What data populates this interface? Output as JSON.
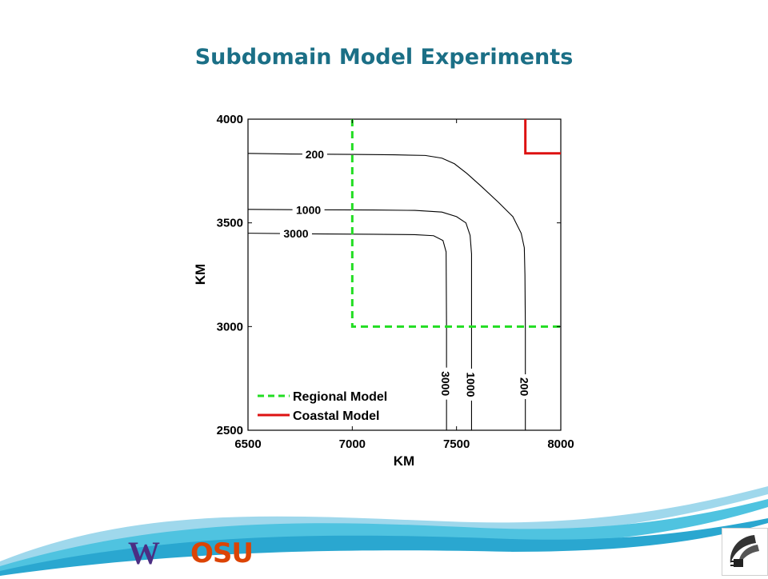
{
  "slide": {
    "title": "Subdomain Model Experiments",
    "logos": {
      "uw": "W",
      "osu": "OSU",
      "badge_icon": "wave-plug-icon"
    }
  },
  "colors": {
    "title": "#1b6f86",
    "regional": "#22dd22",
    "coastal": "#dd1111",
    "uw": "#4b2e83",
    "osu": "#dc4405"
  },
  "chart_data": {
    "type": "line",
    "xlabel": "KM",
    "ylabel": "KM",
    "xlim": [
      6500,
      8000
    ],
    "ylim": [
      2500,
      4000
    ],
    "xticks": [
      "6500",
      "7000",
      "7500",
      "8000"
    ],
    "yticks": [
      "2500",
      "3000",
      "3500",
      "4000"
    ],
    "grid": false,
    "legend_position": "bottom-left",
    "series": [
      {
        "name": "Regional Model",
        "style": "dashed",
        "color": "#22dd22",
        "points": [
          [
            7000,
            4000
          ],
          [
            7000,
            3000
          ],
          [
            8000,
            3000
          ]
        ]
      },
      {
        "name": "Coastal Model",
        "style": "solid",
        "color": "#dd1111",
        "points": [
          [
            7830,
            4000
          ],
          [
            7830,
            3835
          ],
          [
            8000,
            3835
          ]
        ]
      }
    ],
    "contours": [
      {
        "label": "200",
        "points": [
          [
            6500,
            3835
          ],
          [
            6700,
            3832
          ],
          [
            7000,
            3830
          ],
          [
            7200,
            3828
          ],
          [
            7350,
            3825
          ],
          [
            7430,
            3812
          ],
          [
            7490,
            3785
          ],
          [
            7550,
            3738
          ],
          [
            7620,
            3675
          ],
          [
            7700,
            3600
          ],
          [
            7770,
            3530
          ],
          [
            7810,
            3450
          ],
          [
            7825,
            3380
          ],
          [
            7828,
            3250
          ],
          [
            7830,
            3000
          ],
          [
            7830,
            2500
          ]
        ],
        "label_positions": [
          [
            6820,
            3830
          ],
          [
            7830,
            2710
          ]
        ]
      },
      {
        "label": "1000",
        "points": [
          [
            6500,
            3565
          ],
          [
            6800,
            3563
          ],
          [
            7100,
            3562
          ],
          [
            7300,
            3560
          ],
          [
            7430,
            3552
          ],
          [
            7500,
            3530
          ],
          [
            7545,
            3500
          ],
          [
            7565,
            3440
          ],
          [
            7572,
            3350
          ],
          [
            7572,
            3000
          ],
          [
            7572,
            2500
          ]
        ],
        "label_positions": [
          [
            6790,
            3562
          ],
          [
            7572,
            2720
          ]
        ]
      },
      {
        "label": "3000",
        "points": [
          [
            6500,
            3450
          ],
          [
            6800,
            3447
          ],
          [
            7100,
            3445
          ],
          [
            7300,
            3443
          ],
          [
            7390,
            3438
          ],
          [
            7435,
            3415
          ],
          [
            7450,
            3360
          ],
          [
            7452,
            3000
          ],
          [
            7452,
            2500
          ]
        ],
        "label_positions": [
          [
            6730,
            3448
          ],
          [
            7452,
            2725
          ]
        ]
      }
    ]
  }
}
